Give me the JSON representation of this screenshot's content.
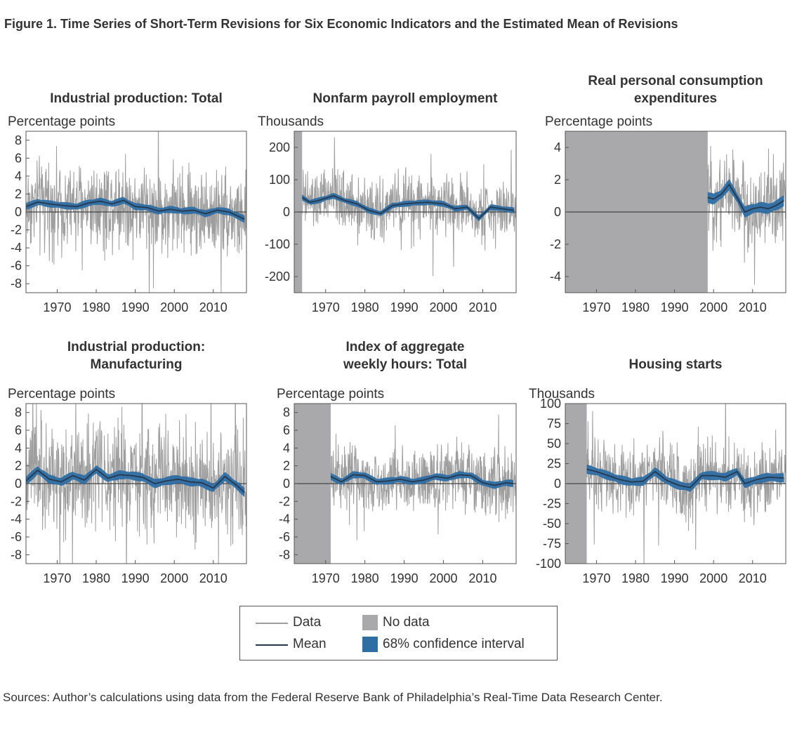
{
  "figure": {
    "title": "Figure 1. Time Series of Short-Term Revisions for Six Economic Indicators and the Estimated Mean of Revisions",
    "source": "Sources: Author’s calculations using data from the Federal Reserve Bank of Philadelphia’s Real-Time Data Research Center."
  },
  "legend": {
    "data_label": "Data",
    "mean_label": "Mean",
    "nodata_label": "No data",
    "ci_label": "68% confidence interval"
  },
  "colors": {
    "data": "#9e9e9e",
    "mean": "#26384d",
    "ci": "#2e6ea3",
    "nodata": "#a9a9ab",
    "zero_line": "#444444"
  },
  "chart_data": [
    {
      "type": "line",
      "title": [
        "Industrial production: Total"
      ],
      "ylabel": "Percentage points",
      "xlim": [
        1962,
        2018.5
      ],
      "ylim": [
        -9,
        9
      ],
      "yticks": [
        -8,
        -6,
        -4,
        -2,
        0,
        2,
        4,
        6,
        8
      ],
      "xticks": [
        1970,
        1980,
        1990,
        2000,
        2010
      ],
      "no_data_until": null,
      "data_amplitude": 2.4,
      "mean": {
        "x": [
          1962,
          1965,
          1968,
          1972,
          1975,
          1978,
          1981,
          1984,
          1987,
          1990,
          1993,
          1996,
          1999,
          2002,
          2005,
          2008,
          2011,
          2014,
          2018
        ],
        "y": [
          0.6,
          1.1,
          0.9,
          0.7,
          0.6,
          1.0,
          1.2,
          0.9,
          1.3,
          0.6,
          0.5,
          0.1,
          0.3,
          0.1,
          0.2,
          -0.2,
          0.2,
          0.0,
          -0.8
        ]
      },
      "ci_halfwidth": 0.35
    },
    {
      "type": "line",
      "title": [
        "Nonfarm payroll employment"
      ],
      "ylabel": "Thousands",
      "xlim": [
        1962,
        2018.5
      ],
      "ylim": [
        -250,
        250
      ],
      "yticks": [
        -200,
        -100,
        0,
        100,
        200
      ],
      "xticks": [
        1970,
        1980,
        1990,
        2000,
        2010
      ],
      "no_data_until": 1964,
      "data_amplitude": 45,
      "mean": {
        "x": [
          1964,
          1966,
          1968,
          1972,
          1975,
          1978,
          1981,
          1984,
          1987,
          1990,
          1993,
          1996,
          2000,
          2003,
          2006,
          2009,
          2012,
          2015,
          2018
        ],
        "y": [
          45,
          30,
          35,
          50,
          35,
          25,
          5,
          -5,
          20,
          25,
          28,
          30,
          25,
          10,
          15,
          -20,
          15,
          10,
          5
        ]
      },
      "ci_halfwidth": 8
    },
    {
      "type": "line",
      "title": [
        "Real personal consumption",
        "expenditures"
      ],
      "ylabel": "Percentage points",
      "xlim": [
        1962,
        2018.5
      ],
      "ylim": [
        -5,
        5
      ],
      "yticks": [
        -4,
        -2,
        0,
        2,
        4
      ],
      "xticks": [
        1970,
        1980,
        1990,
        2000,
        2010
      ],
      "no_data_until": 1998.5,
      "data_amplitude": 1.3,
      "mean": {
        "x": [
          1998.5,
          2000,
          2002,
          2004,
          2006,
          2008,
          2010,
          2012,
          2014,
          2016,
          2018
        ],
        "y": [
          0.9,
          0.8,
          1.1,
          1.7,
          0.9,
          0.0,
          0.2,
          0.3,
          0.2,
          0.4,
          0.7
        ]
      },
      "ci_halfwidth": 0.3
    },
    {
      "type": "line",
      "title": [
        "Industrial production:",
        "Manufacturing"
      ],
      "ylabel": "Percentage points",
      "xlim": [
        1962,
        2018.5
      ],
      "ylim": [
        -9,
        9
      ],
      "yticks": [
        -8,
        -6,
        -4,
        -2,
        0,
        2,
        4,
        6,
        8
      ],
      "xticks": [
        1970,
        1980,
        1990,
        2000,
        2010
      ],
      "no_data_until": null,
      "data_amplitude": 3.0,
      "mean": {
        "x": [
          1962,
          1965,
          1968,
          1971,
          1974,
          1977,
          1980,
          1983,
          1986,
          1989,
          1992,
          1995,
          1998,
          2001,
          2004,
          2007,
          2010,
          2013,
          2016,
          2018
        ],
        "y": [
          0.3,
          1.5,
          0.5,
          0.2,
          0.9,
          0.4,
          1.6,
          0.6,
          1.0,
          0.9,
          0.7,
          0.0,
          0.3,
          0.5,
          0.2,
          0.1,
          -0.5,
          0.8,
          -0.2,
          -1.0
        ]
      },
      "ci_halfwidth": 0.45
    },
    {
      "type": "line",
      "title": [
        "Index of aggregate",
        "weekly hours: Total"
      ],
      "ylabel": "Percentage points",
      "xlim": [
        1962,
        2018.5
      ],
      "ylim": [
        -9,
        9
      ],
      "yticks": [
        -8,
        -6,
        -4,
        -2,
        0,
        2,
        4,
        6,
        8
      ],
      "xticks": [
        1970,
        1980,
        1990,
        2000,
        2010
      ],
      "no_data_until": 1971.3,
      "data_amplitude": 1.8,
      "mean": {
        "x": [
          1971.3,
          1974,
          1977,
          1980,
          1983,
          1986,
          1989,
          1992,
          1995,
          1998,
          2001,
          2004,
          2007,
          2010,
          2013,
          2016,
          2018
        ],
        "y": [
          0.8,
          0.2,
          1.0,
          0.9,
          0.2,
          0.3,
          0.5,
          0.2,
          0.4,
          0.8,
          0.6,
          1.0,
          0.9,
          0.1,
          -0.2,
          0.1,
          0.0
        ]
      },
      "ci_halfwidth": 0.35
    },
    {
      "type": "line",
      "title": [
        "Housing starts"
      ],
      "ylabel": "Thousands",
      "xlim": [
        1962,
        2018.5
      ],
      "ylim": [
        -100,
        100
      ],
      "yticks": [
        -100,
        -75,
        -50,
        -25,
        0,
        25,
        50,
        75,
        100
      ],
      "xticks": [
        1970,
        1980,
        1990,
        2000,
        2010
      ],
      "no_data_until": 1967.5,
      "data_amplitude": 22,
      "mean": {
        "x": [
          1967.5,
          1970,
          1973,
          1976,
          1979,
          1982,
          1985,
          1988,
          1991,
          1994,
          1997,
          2000,
          2003,
          2006,
          2008,
          2011,
          2014,
          2018
        ],
        "y": [
          18,
          15,
          10,
          5,
          2,
          3,
          15,
          4,
          -2,
          -5,
          10,
          10,
          8,
          15,
          0,
          5,
          8,
          7
        ]
      },
      "ci_halfwidth": 5
    }
  ]
}
